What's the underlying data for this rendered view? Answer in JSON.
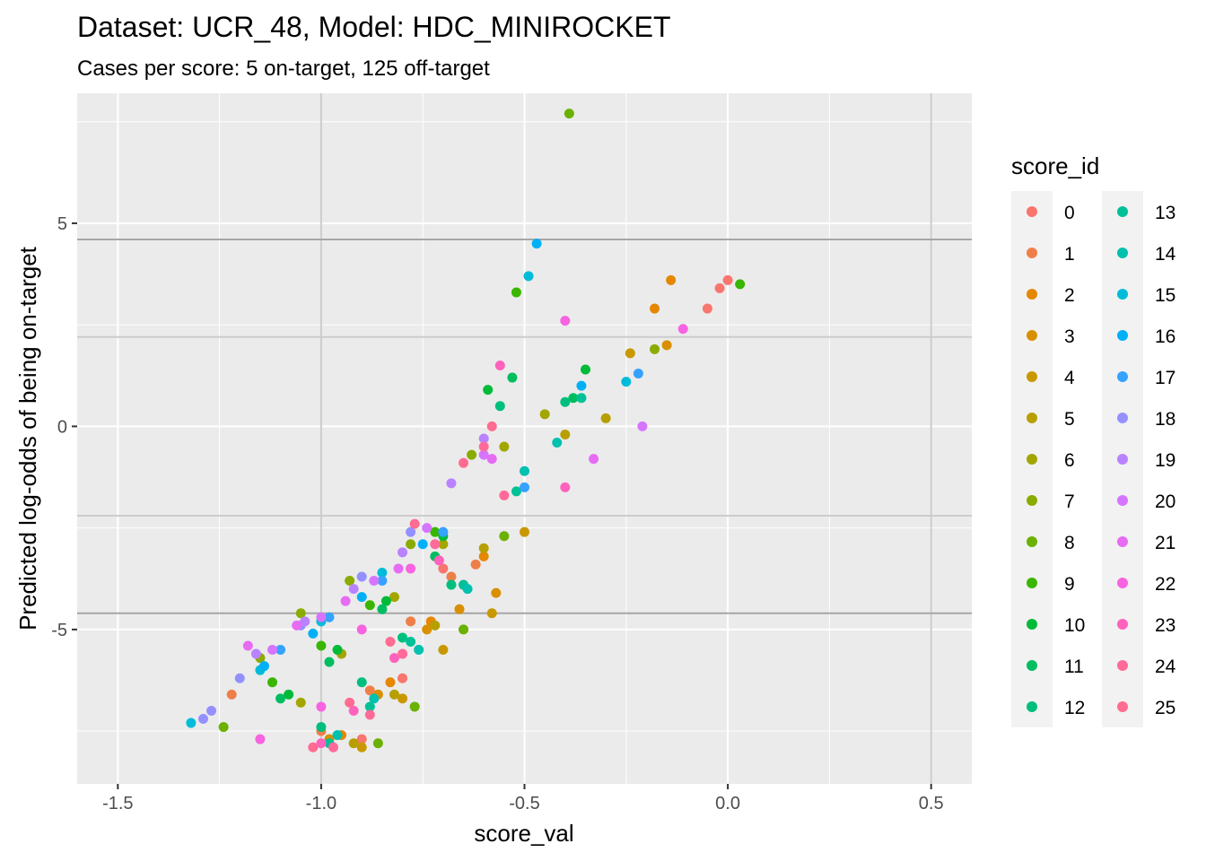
{
  "chart_data": {
    "type": "scatter",
    "title": "Dataset: UCR_48, Model: HDC_MINIROCKET",
    "subtitle": "Cases per score: 5 on-target, 125 off-target",
    "xlabel": "score_val",
    "ylabel": "Predicted log-odds of being on-target",
    "xlim": [
      -1.6,
      0.6
    ],
    "ylim": [
      -8.8,
      8.2
    ],
    "x_ticks": [
      -1.5,
      -1.0,
      -0.5,
      0.0,
      0.5
    ],
    "x_tick_labels": [
      "-1.5",
      "-1.0",
      "-0.5",
      "0.0",
      "0.5"
    ],
    "y_ticks": [
      -5,
      0,
      5
    ],
    "y_tick_labels": [
      "-5",
      "0",
      "5"
    ],
    "reference_lines": {
      "vertical_x": [
        -1.0,
        0.5
      ],
      "horizontal_dark_y": [
        4.6,
        -4.6
      ],
      "horizontal_light_y": [
        2.2,
        -2.2
      ]
    },
    "grid": true,
    "legend": {
      "title": "score_id",
      "position": "right",
      "entries": [
        "0",
        "1",
        "2",
        "3",
        "4",
        "5",
        "6",
        "7",
        "8",
        "9",
        "10",
        "11",
        "12",
        "13",
        "14",
        "15",
        "16",
        "17",
        "18",
        "19",
        "20",
        "21",
        "22",
        "23",
        "24",
        "25"
      ],
      "colors": [
        "#F8766D",
        "#EF7F49",
        "#E58700",
        "#D89000",
        "#C99800",
        "#B79F00",
        "#A3A500",
        "#8AAB00",
        "#6BB100",
        "#39B600",
        "#00BA38",
        "#00BD5F",
        "#00BF7D",
        "#00C097",
        "#00C0AF",
        "#00BCD8",
        "#00B0F6",
        "#35A2FF",
        "#9590FF",
        "#B983FF",
        "#D575FE",
        "#E76BF3",
        "#F763E0",
        "#FF62BC",
        "#FF6A98",
        "#FF6C91"
      ]
    },
    "series": [
      {
        "name": "0",
        "points": [
          [
            -0.9,
            -7.7
          ],
          [
            -0.8,
            -6.2
          ],
          [
            -0.7,
            -3.5
          ],
          [
            0.0,
            3.6
          ],
          [
            -0.05,
            2.9
          ],
          [
            -0.02,
            3.4
          ]
        ]
      },
      {
        "name": "1",
        "points": [
          [
            -1.0,
            -7.5
          ],
          [
            -0.88,
            -6.5
          ],
          [
            -0.78,
            -4.8
          ],
          [
            -0.68,
            -3.7
          ],
          [
            -0.62,
            -3.4
          ],
          [
            -1.22,
            -6.6
          ]
        ]
      },
      {
        "name": "2",
        "points": [
          [
            -0.95,
            -7.6
          ],
          [
            -0.83,
            -6.3
          ],
          [
            -0.73,
            -4.8
          ],
          [
            -0.6,
            -3.2
          ],
          [
            -0.14,
            3.6
          ],
          [
            -0.18,
            2.9
          ]
        ]
      },
      {
        "name": "3",
        "points": [
          [
            -0.98,
            -7.7
          ],
          [
            -0.86,
            -6.6
          ],
          [
            -0.74,
            -5.0
          ],
          [
            -0.66,
            -4.5
          ],
          [
            -0.57,
            -4.1
          ],
          [
            -0.15,
            2.0
          ]
        ]
      },
      {
        "name": "4",
        "points": [
          [
            -0.9,
            -7.9
          ],
          [
            -0.8,
            -6.7
          ],
          [
            -0.7,
            -5.5
          ],
          [
            -0.58,
            -4.6
          ],
          [
            -0.5,
            -2.6
          ],
          [
            -0.24,
            1.8
          ]
        ]
      },
      {
        "name": "5",
        "points": [
          [
            -0.92,
            -7.8
          ],
          [
            -0.82,
            -6.6
          ],
          [
            -0.72,
            -4.9
          ],
          [
            -0.6,
            -3.0
          ],
          [
            -0.4,
            -0.2
          ],
          [
            -0.3,
            0.2
          ]
        ]
      },
      {
        "name": "6",
        "points": [
          [
            -1.05,
            -6.8
          ],
          [
            -0.95,
            -5.6
          ],
          [
            -0.82,
            -4.2
          ],
          [
            -0.7,
            -2.9
          ],
          [
            -0.55,
            -0.5
          ],
          [
            -0.45,
            0.3
          ]
        ]
      },
      {
        "name": "7",
        "points": [
          [
            -1.15,
            -5.7
          ],
          [
            -1.05,
            -4.6
          ],
          [
            -0.93,
            -3.8
          ],
          [
            -0.78,
            -2.9
          ],
          [
            -0.63,
            -0.7
          ],
          [
            -0.18,
            1.9
          ]
        ]
      },
      {
        "name": "8",
        "points": [
          [
            -0.86,
            -7.8
          ],
          [
            -0.77,
            -6.9
          ],
          [
            -0.65,
            -5.0
          ],
          [
            -0.55,
            -2.7
          ],
          [
            -0.39,
            7.7
          ],
          [
            -1.24,
            -7.4
          ]
        ]
      },
      {
        "name": "9",
        "points": [
          [
            -1.12,
            -6.3
          ],
          [
            -1.0,
            -5.4
          ],
          [
            -0.88,
            -4.4
          ],
          [
            -0.72,
            -2.6
          ],
          [
            -0.52,
            3.3
          ],
          [
            0.03,
            3.5
          ]
        ]
      },
      {
        "name": "10",
        "points": [
          [
            -1.08,
            -6.6
          ],
          [
            -0.96,
            -5.5
          ],
          [
            -0.84,
            -4.3
          ],
          [
            -0.7,
            -2.7
          ],
          [
            -0.59,
            0.9
          ],
          [
            -0.35,
            1.4
          ]
        ]
      },
      {
        "name": "11",
        "points": [
          [
            -1.1,
            -6.7
          ],
          [
            -0.98,
            -5.8
          ],
          [
            -0.85,
            -4.5
          ],
          [
            -0.72,
            -3.2
          ],
          [
            -0.53,
            1.2
          ],
          [
            -0.38,
            0.7
          ]
        ]
      },
      {
        "name": "12",
        "points": [
          [
            -1.0,
            -7.4
          ],
          [
            -0.9,
            -6.3
          ],
          [
            -0.8,
            -5.2
          ],
          [
            -0.68,
            -3.9
          ],
          [
            -0.56,
            0.5
          ],
          [
            -0.4,
            0.6
          ]
        ]
      },
      {
        "name": "13",
        "points": [
          [
            -0.98,
            -7.8
          ],
          [
            -0.88,
            -6.9
          ],
          [
            -0.78,
            -5.3
          ],
          [
            -0.65,
            -3.9
          ],
          [
            -0.52,
            -1.6
          ],
          [
            -0.36,
            0.7
          ]
        ]
      },
      {
        "name": "14",
        "points": [
          [
            -0.96,
            -7.6
          ],
          [
            -0.87,
            -6.7
          ],
          [
            -0.76,
            -5.5
          ],
          [
            -0.64,
            -4.0
          ],
          [
            -0.5,
            -1.1
          ],
          [
            -0.42,
            -0.4
          ]
        ]
      },
      {
        "name": "15",
        "points": [
          [
            -1.32,
            -7.3
          ],
          [
            -1.15,
            -6.0
          ],
          [
            -1.0,
            -4.8
          ],
          [
            -0.85,
            -3.6
          ],
          [
            -0.49,
            3.7
          ],
          [
            -0.25,
            1.1
          ]
        ]
      },
      {
        "name": "16",
        "points": [
          [
            -1.14,
            -5.9
          ],
          [
            -1.02,
            -5.1
          ],
          [
            -0.9,
            -4.2
          ],
          [
            -0.75,
            -2.9
          ],
          [
            -0.47,
            4.5
          ],
          [
            -0.36,
            1.0
          ]
        ]
      },
      {
        "name": "17",
        "points": [
          [
            -1.1,
            -5.5
          ],
          [
            -0.98,
            -4.7
          ],
          [
            -0.85,
            -3.8
          ],
          [
            -0.7,
            -2.6
          ],
          [
            -0.5,
            -1.5
          ],
          [
            -0.22,
            1.3
          ]
        ]
      },
      {
        "name": "18",
        "points": [
          [
            -1.29,
            -7.2
          ],
          [
            -1.2,
            -6.2
          ],
          [
            -1.05,
            -4.9
          ],
          [
            -0.9,
            -3.7
          ],
          [
            -0.78,
            -2.6
          ],
          [
            -1.27,
            -7.0
          ]
        ]
      },
      {
        "name": "19",
        "points": [
          [
            -1.16,
            -5.6
          ],
          [
            -1.04,
            -4.8
          ],
          [
            -0.92,
            -4.0
          ],
          [
            -0.8,
            -3.1
          ],
          [
            -0.68,
            -1.4
          ],
          [
            -0.6,
            -0.3
          ]
        ]
      },
      {
        "name": "20",
        "points": [
          [
            -1.12,
            -5.5
          ],
          [
            -1.0,
            -4.7
          ],
          [
            -0.87,
            -3.8
          ],
          [
            -0.74,
            -2.5
          ],
          [
            -0.6,
            -0.7
          ],
          [
            -0.21,
            0.0
          ]
        ]
      },
      {
        "name": "21",
        "points": [
          [
            -1.18,
            -5.4
          ],
          [
            -1.06,
            -4.9
          ],
          [
            -0.94,
            -4.3
          ],
          [
            -0.81,
            -3.5
          ],
          [
            -0.58,
            -0.8
          ],
          [
            -0.33,
            -0.8
          ]
        ]
      },
      {
        "name": "22",
        "points": [
          [
            -1.15,
            -7.7
          ],
          [
            -1.0,
            -6.9
          ],
          [
            -0.9,
            -5.0
          ],
          [
            -0.78,
            -3.5
          ],
          [
            -0.4,
            2.6
          ],
          [
            -0.11,
            2.4
          ]
        ]
      },
      {
        "name": "23",
        "points": [
          [
            -1.0,
            -7.8
          ],
          [
            -0.92,
            -7.0
          ],
          [
            -0.82,
            -5.7
          ],
          [
            -0.71,
            -3.3
          ],
          [
            -0.56,
            1.5
          ],
          [
            -0.4,
            -1.5
          ]
        ]
      },
      {
        "name": "24",
        "points": [
          [
            -0.97,
            -7.9
          ],
          [
            -0.88,
            -7.1
          ],
          [
            -0.8,
            -5.6
          ],
          [
            -0.72,
            -2.9
          ],
          [
            -0.6,
            -0.5
          ],
          [
            -0.55,
            -1.7
          ]
        ]
      },
      {
        "name": "25",
        "points": [
          [
            -1.02,
            -7.9
          ],
          [
            -0.93,
            -6.8
          ],
          [
            -0.83,
            -5.3
          ],
          [
            -0.77,
            -2.4
          ],
          [
            -0.65,
            -0.9
          ],
          [
            -0.58,
            0.0
          ]
        ]
      }
    ]
  }
}
